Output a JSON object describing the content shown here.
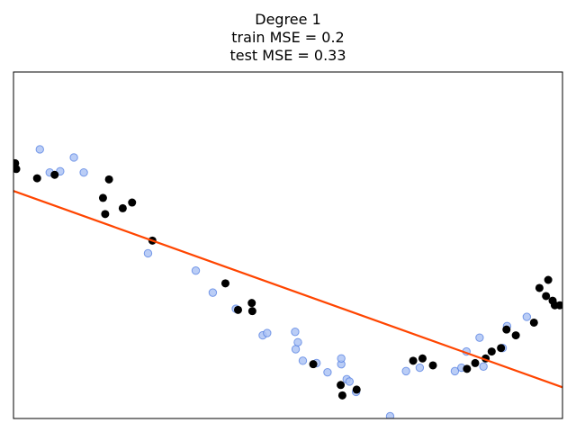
{
  "chart_data": {
    "type": "scatter",
    "title_lines": [
      "Degree 1",
      "train MSE = 0.2",
      "test MSE = 0.33"
    ],
    "xlabel": "",
    "ylabel": "",
    "xlim": [
      0,
      1
    ],
    "ylim": [
      -1.5,
      1.5
    ],
    "show_ticks": false,
    "grid": false,
    "legend": "none",
    "colors": {
      "test_points_fill": "#aec4f5",
      "test_points_edge": "#4a78e0",
      "train_points": "#000000",
      "fit_line": "#ff4500",
      "axes": "#000000"
    },
    "series": [
      {
        "marker": "faint-blue-circle",
        "x": [
          0.048,
          0.066,
          0.085,
          0.11,
          0.128,
          0.245,
          0.332,
          0.363,
          0.405,
          0.454,
          0.462,
          0.513,
          0.514,
          0.518,
          0.527,
          0.552,
          0.572,
          0.597,
          0.597,
          0.607,
          0.612,
          0.624,
          0.686,
          0.715,
          0.74,
          0.804,
          0.816,
          0.825,
          0.849,
          0.856,
          0.891,
          0.899,
          0.935
        ],
        "y": [
          0.83,
          0.63,
          0.64,
          0.76,
          0.63,
          -0.07,
          -0.22,
          -0.41,
          -0.55,
          -0.78,
          -0.76,
          -0.75,
          -0.9,
          -0.84,
          -1.0,
          -1.02,
          -1.1,
          -1.03,
          -0.98,
          -1.16,
          -1.18,
          -1.27,
          -1.48,
          -1.09,
          -1.06,
          -1.09,
          -1.06,
          -0.92,
          -0.8,
          -1.05,
          -0.89,
          -0.7,
          -0.62
        ]
      },
      {
        "marker": "black-circle",
        "x": [
          0.003,
          0.005,
          0.043,
          0.075,
          0.163,
          0.167,
          0.174,
          0.199,
          0.216,
          0.253,
          0.386,
          0.409,
          0.434,
          0.435,
          0.546,
          0.596,
          0.599,
          0.625,
          0.728,
          0.745,
          0.764,
          0.826,
          0.841,
          0.86,
          0.871,
          0.888,
          0.898,
          0.915,
          0.948,
          0.958,
          0.97,
          0.974,
          0.982,
          0.986,
          0.995
        ],
        "y": [
          0.71,
          0.66,
          0.58,
          0.61,
          0.41,
          0.27,
          0.57,
          0.32,
          0.37,
          0.04,
          -0.33,
          -0.56,
          -0.5,
          -0.57,
          -1.03,
          -1.21,
          -1.3,
          -1.25,
          -1.0,
          -0.98,
          -1.04,
          -1.07,
          -1.02,
          -0.98,
          -0.92,
          -0.89,
          -0.73,
          -0.78,
          -0.67,
          -0.37,
          -0.44,
          -0.3,
          -0.48,
          -0.52,
          -0.52
        ]
      }
    ],
    "fit_line": {
      "x": [
        0,
        1
      ],
      "y": [
        0.47,
        -1.23
      ]
    }
  }
}
